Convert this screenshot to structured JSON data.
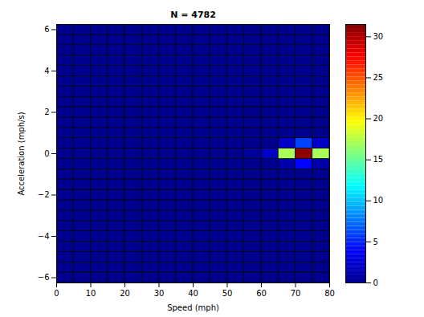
{
  "chart_data": {
    "type": "heatmap",
    "title": "N = 4782",
    "x_label": "Speed (mph)",
    "y_label": "Acceleration (mph/s)",
    "xlim": [
      0,
      80
    ],
    "xticks": [
      0,
      10,
      20,
      30,
      40,
      50,
      60,
      70,
      80
    ],
    "ylim": [
      -6.25,
      6.25
    ],
    "yticks": [
      -6,
      -4,
      -2,
      0,
      2,
      4,
      6
    ],
    "x_bins": [
      0,
      5,
      10,
      15,
      20,
      25,
      30,
      35,
      40,
      45,
      50,
      55,
      60,
      65,
      70,
      75,
      80
    ],
    "y_bins": [
      -6.25,
      -5.75,
      -5.25,
      -4.75,
      -4.25,
      -3.75,
      -3.25,
      -2.75,
      -2.25,
      -1.75,
      -1.25,
      -0.75,
      -0.25,
      0.25,
      0.75,
      1.25,
      1.75,
      2.25,
      2.75,
      3.25,
      3.75,
      4.25,
      4.75,
      5.25,
      5.75,
      6.25
    ],
    "counts": [
      [
        0,
        0,
        0,
        0,
        0,
        0,
        0,
        0,
        0,
        0,
        0,
        0,
        0,
        0,
        0,
        0
      ],
      [
        0,
        0,
        0,
        0,
        0,
        0,
        0,
        0,
        0,
        0,
        0,
        0,
        0,
        0,
        0,
        0
      ],
      [
        0,
        0,
        0,
        0,
        0,
        0,
        0,
        0,
        0,
        0,
        0,
        0,
        0,
        0,
        0,
        0
      ],
      [
        0,
        0,
        0,
        0,
        0,
        0,
        0,
        0,
        0,
        0,
        0,
        0,
        0,
        0,
        0,
        0
      ],
      [
        0,
        0,
        0,
        0,
        0,
        0,
        0,
        0,
        0,
        0,
        0,
        0,
        0,
        0,
        0,
        0
      ],
      [
        0,
        0,
        0,
        0,
        0,
        0,
        0,
        0,
        0,
        0,
        0,
        0,
        0,
        0,
        0,
        0
      ],
      [
        0,
        0,
        0,
        0,
        0,
        0,
        0,
        0,
        0,
        0,
        0,
        0,
        0,
        0,
        0,
        0
      ],
      [
        0,
        0,
        0,
        0,
        0,
        0,
        0,
        0,
        0,
        0,
        0,
        0,
        0,
        0,
        0,
        0
      ],
      [
        0,
        0,
        0,
        0,
        0,
        0,
        0,
        0,
        0,
        0,
        0,
        0,
        0,
        0,
        0,
        0
      ],
      [
        0,
        0,
        0,
        0,
        0,
        0,
        0,
        0,
        0,
        0,
        0,
        0,
        0,
        0,
        0,
        0
      ],
      [
        0,
        0,
        0,
        0,
        0,
        0,
        0,
        0,
        0,
        0,
        0,
        0,
        0,
        0,
        0,
        0
      ],
      [
        0,
        0,
        0,
        0,
        0,
        0,
        0,
        0,
        0,
        0,
        0,
        0,
        0,
        1,
        4,
        1
      ],
      [
        0,
        0,
        0,
        0,
        0,
        0,
        0,
        0,
        0,
        0,
        0,
        0.5,
        2,
        17,
        31,
        17
      ],
      [
        0,
        0,
        0,
        0,
        0,
        0,
        0,
        0,
        0,
        0,
        0,
        0,
        0,
        2,
        6,
        2
      ],
      [
        0,
        0,
        0,
        0,
        0,
        0,
        0,
        0,
        0,
        0,
        0,
        0,
        0,
        0,
        0,
        0
      ],
      [
        0,
        0,
        0,
        0,
        0,
        0,
        0,
        0,
        0,
        0,
        0,
        0,
        0,
        0,
        0,
        0
      ],
      [
        0,
        0,
        0,
        0,
        0,
        0,
        0,
        0,
        0,
        0,
        0,
        0,
        0,
        0,
        0,
        0
      ],
      [
        0,
        0,
        0,
        0,
        0,
        0,
        0,
        0,
        0,
        0,
        0,
        0,
        0,
        0,
        0,
        0
      ],
      [
        0,
        0,
        0,
        0,
        0,
        0,
        0,
        0,
        0,
        0,
        0,
        0,
        0,
        0,
        0,
        0
      ],
      [
        0,
        0,
        0,
        0,
        0,
        0,
        0,
        0,
        0,
        0,
        0,
        0,
        0,
        0,
        0,
        0
      ],
      [
        0,
        0,
        0,
        0,
        0,
        0,
        0,
        0,
        0,
        0,
        0,
        0,
        0,
        0,
        0,
        0
      ],
      [
        0,
        0,
        0,
        0,
        0,
        0,
        0,
        0,
        0,
        0,
        0,
        0,
        0,
        0,
        0,
        0
      ],
      [
        0,
        0,
        0,
        0,
        0,
        0,
        0,
        0,
        0,
        0,
        0,
        0,
        0,
        0,
        0,
        0
      ],
      [
        0,
        0,
        0,
        0,
        0,
        0,
        0,
        0,
        0,
        0,
        0,
        0,
        0,
        0,
        0,
        0
      ],
      [
        0,
        0,
        0,
        0,
        0,
        0,
        0,
        0,
        0,
        0,
        0,
        0,
        0,
        0,
        0,
        0
      ]
    ],
    "colorbar": {
      "lim": [
        0,
        31.5
      ],
      "ticks": [
        0,
        5,
        10,
        15,
        20,
        25,
        30
      ]
    }
  }
}
